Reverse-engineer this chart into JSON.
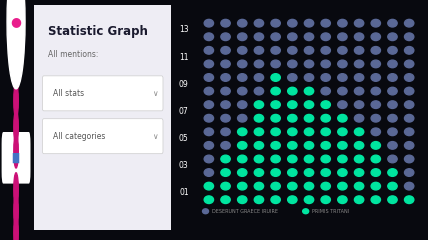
{
  "bg_color": "#08090f",
  "sidebar_color": "#e91e8c",
  "card_bg": "#eeedf4",
  "title": "Statistic Graph",
  "subtitle": "All mentions:",
  "dropdown1": "All stats",
  "dropdown2": "All categories",
  "y_labels": [
    "13",
    "11",
    "09",
    "07",
    "05",
    "03",
    "01"
  ],
  "n_cols": 13,
  "n_rows": 14,
  "dot_color_grey": "#5a6896",
  "dot_color_green": "#00e5a0",
  "legend1": "DESERUNT GRAECE IRUIRE",
  "legend2": "PRIMIS TRITANI",
  "green_pattern": [
    [
      0,
      0,
      0,
      0,
      0,
      0,
      0,
      0,
      0,
      0,
      0,
      0,
      0
    ],
    [
      0,
      0,
      0,
      0,
      0,
      0,
      0,
      0,
      0,
      0,
      0,
      0,
      0
    ],
    [
      0,
      0,
      0,
      0,
      0,
      0,
      0,
      0,
      0,
      0,
      0,
      0,
      0
    ],
    [
      0,
      0,
      0,
      0,
      0,
      0,
      0,
      0,
      0,
      0,
      0,
      0,
      0
    ],
    [
      0,
      0,
      0,
      0,
      1,
      0,
      0,
      0,
      0,
      0,
      0,
      0,
      0
    ],
    [
      0,
      0,
      0,
      0,
      1,
      1,
      1,
      0,
      0,
      0,
      0,
      0,
      0
    ],
    [
      0,
      0,
      0,
      1,
      1,
      1,
      1,
      1,
      0,
      0,
      0,
      0,
      0
    ],
    [
      0,
      0,
      0,
      1,
      1,
      1,
      1,
      1,
      1,
      0,
      0,
      0,
      0
    ],
    [
      0,
      0,
      1,
      1,
      1,
      1,
      1,
      1,
      1,
      1,
      0,
      0,
      0
    ],
    [
      0,
      0,
      1,
      1,
      1,
      1,
      1,
      1,
      1,
      1,
      1,
      0,
      0
    ],
    [
      0,
      1,
      1,
      1,
      1,
      1,
      1,
      1,
      1,
      1,
      1,
      0,
      0
    ],
    [
      0,
      1,
      1,
      1,
      1,
      1,
      1,
      1,
      1,
      1,
      1,
      1,
      0
    ],
    [
      1,
      1,
      1,
      1,
      1,
      1,
      1,
      1,
      1,
      1,
      1,
      1,
      0
    ],
    [
      1,
      1,
      1,
      1,
      1,
      1,
      1,
      1,
      1,
      1,
      1,
      1,
      1
    ]
  ],
  "fig_width": 4.28,
  "fig_height": 2.4,
  "fig_dpi": 100
}
